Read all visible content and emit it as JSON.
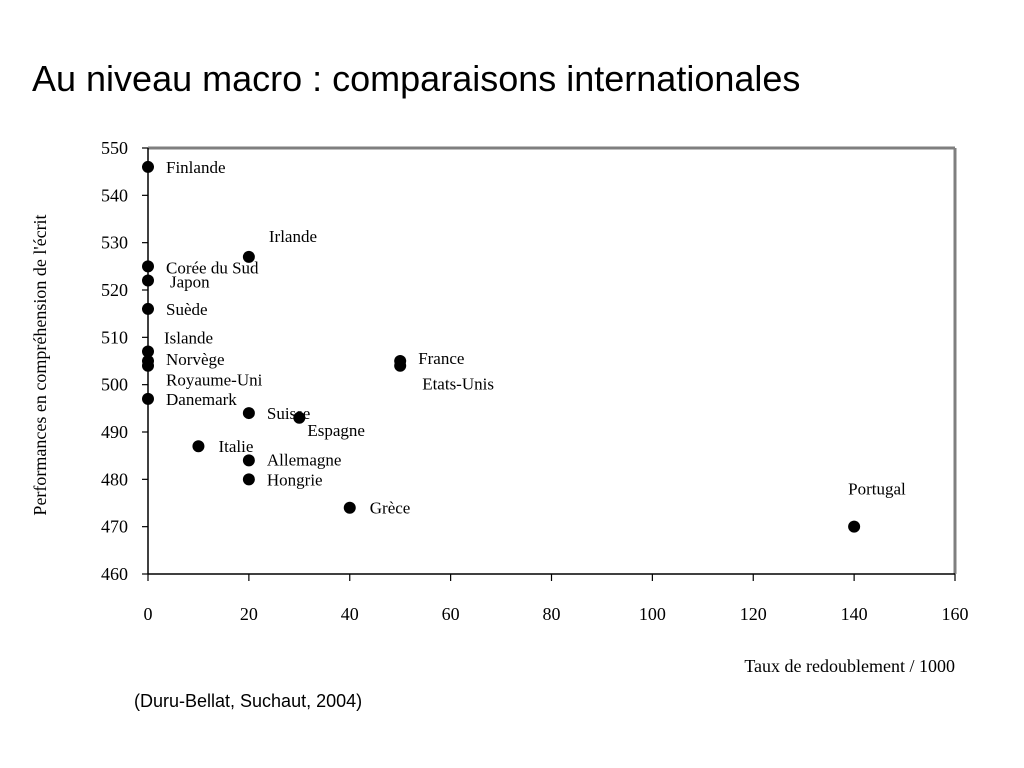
{
  "slide": {
    "title": "Au niveau macro : comparaisons internationales",
    "source": "(Duru-Bellat, Suchaut, 2004)"
  },
  "chart_data": {
    "type": "scatter",
    "title": "",
    "xlabel": "Taux de redoublement / 1000",
    "ylabel": "Performances en compréhension de l'écrit",
    "xlim": [
      0,
      160
    ],
    "ylim": [
      460,
      550
    ],
    "xticks": [
      0,
      20,
      40,
      60,
      80,
      100,
      120,
      140,
      160
    ],
    "yticks": [
      460,
      470,
      480,
      490,
      500,
      510,
      520,
      530,
      540,
      550
    ],
    "grid": false,
    "marker_color": "#000000",
    "points": [
      {
        "label": "Finlande",
        "x": 0,
        "y": 546
      },
      {
        "label": "Irlande",
        "x": 20,
        "y": 527
      },
      {
        "label": "Corée du Sud",
        "x": 0,
        "y": 525
      },
      {
        "label": "Japon",
        "x": 0,
        "y": 522
      },
      {
        "label": "Suède",
        "x": 0,
        "y": 516
      },
      {
        "label": "Islande",
        "x": 0,
        "y": 507
      },
      {
        "label": "Norvège",
        "x": 0,
        "y": 505
      },
      {
        "label": "Royaume-Uni",
        "x": 0,
        "y": 504
      },
      {
        "label": "Danemark",
        "x": 0,
        "y": 497
      },
      {
        "label": "France",
        "x": 50,
        "y": 505
      },
      {
        "label": "Etats-Unis",
        "x": 50,
        "y": 504
      },
      {
        "label": "Suisse",
        "x": 20,
        "y": 494
      },
      {
        "label": "Espagne",
        "x": 30,
        "y": 493
      },
      {
        "label": "Italie",
        "x": 10,
        "y": 487
      },
      {
        "label": "Allemagne",
        "x": 20,
        "y": 484
      },
      {
        "label": "Hongrie",
        "x": 20,
        "y": 480
      },
      {
        "label": "Grèce",
        "x": 40,
        "y": 474
      },
      {
        "label": "Portugal",
        "x": 140,
        "y": 470
      }
    ]
  }
}
